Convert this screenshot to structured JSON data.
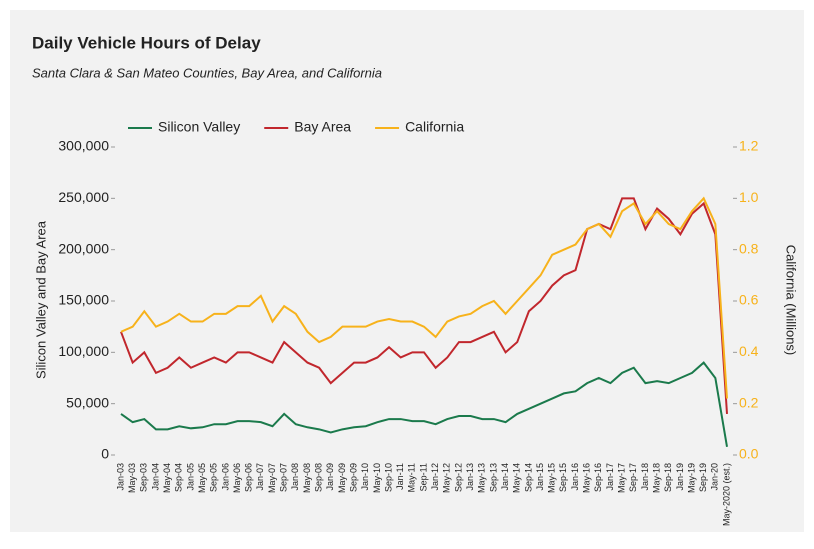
{
  "chart_data": {
    "type": "line",
    "title": "Daily Vehicle Hours of Delay",
    "subtitle": "Santa Clara & San Mateo Counties, Bay Area, and California",
    "ylabel": "Silicon Valley and Bay Area",
    "y2label": "California (Millions)",
    "categories": [
      "Jan-03",
      "May-03",
      "Sep-03",
      "Jan-04",
      "May-04",
      "Sep-04",
      "Jan-05",
      "May-05",
      "Sep-05",
      "Jan-06",
      "May-06",
      "Sep-06",
      "Jan-07",
      "May-07",
      "Sep-07",
      "Jan-08",
      "May-08",
      "Sep-08",
      "Jan-09",
      "May-09",
      "Sep-09",
      "Jan-10",
      "May-10",
      "Sep-10",
      "Jan-11",
      "May-11",
      "Sep-11",
      "Jan-12",
      "May-12",
      "Sep-12",
      "Jan-13",
      "May-13",
      "Sep-13",
      "Jan-14",
      "May-14",
      "Sep-14",
      "Jan-15",
      "May-15",
      "Sep-15",
      "Jan-16",
      "May-16",
      "Sep-16",
      "Jan-17",
      "May-17",
      "Sep-17",
      "Jan-18",
      "May-18",
      "Sep-18",
      "Jan-19",
      "May-19",
      "Sep-19",
      "Jan-20",
      "May-2020 (est.)"
    ],
    "series": [
      {
        "name": "Silicon Valley",
        "color": "#1b7a4c",
        "values": [
          40000,
          32000,
          35000,
          25000,
          25000,
          28000,
          26000,
          27000,
          30000,
          30000,
          33000,
          33000,
          32000,
          28000,
          40000,
          30000,
          27000,
          25000,
          22000,
          25000,
          27000,
          28000,
          32000,
          35000,
          35000,
          33000,
          33000,
          30000,
          35000,
          38000,
          38000,
          35000,
          35000,
          32000,
          40000,
          45000,
          50000,
          55000,
          60000,
          62000,
          70000,
          75000,
          70000,
          80000,
          85000,
          70000,
          72000,
          70000,
          75000,
          80000,
          90000,
          75000,
          8000
        ]
      },
      {
        "name": "Bay Area",
        "color": "#c1272d",
        "values": [
          120000,
          90000,
          100000,
          80000,
          85000,
          95000,
          85000,
          90000,
          95000,
          90000,
          100000,
          100000,
          95000,
          90000,
          110000,
          100000,
          90000,
          85000,
          70000,
          80000,
          90000,
          90000,
          95000,
          105000,
          95000,
          100000,
          100000,
          85000,
          95000,
          110000,
          110000,
          115000,
          120000,
          100000,
          110000,
          140000,
          150000,
          165000,
          175000,
          180000,
          220000,
          225000,
          220000,
          250000,
          250000,
          220000,
          240000,
          230000,
          215000,
          235000,
          245000,
          215000,
          40000
        ]
      },
      {
        "name": "California",
        "color": "#f7b21b",
        "axis": "y2",
        "values": [
          0.48,
          0.5,
          0.56,
          0.5,
          0.52,
          0.55,
          0.52,
          0.52,
          0.55,
          0.55,
          0.58,
          0.58,
          0.62,
          0.52,
          0.58,
          0.55,
          0.48,
          0.44,
          0.46,
          0.5,
          0.5,
          0.5,
          0.52,
          0.53,
          0.52,
          0.52,
          0.5,
          0.46,
          0.52,
          0.54,
          0.55,
          0.58,
          0.6,
          0.55,
          0.6,
          0.65,
          0.7,
          0.78,
          0.8,
          0.82,
          0.88,
          0.9,
          0.85,
          0.95,
          0.98,
          0.9,
          0.95,
          0.9,
          0.88,
          0.95,
          1.0,
          0.9,
          0.22
        ]
      }
    ],
    "ylim": [
      0,
      300000
    ],
    "yticks": [
      0,
      {
        "value": 50000,
        "label": "50,000"
      },
      {
        "value": 100000,
        "label": "100,000"
      },
      {
        "value": 150000,
        "label": "150,000"
      },
      {
        "value": 200000,
        "label": "200,000"
      },
      {
        "value": 250000,
        "label": "250,000"
      },
      {
        "value": 300000,
        "label": "300,000"
      }
    ],
    "y2lim": [
      0,
      1.2
    ],
    "y2ticks": [
      {
        "value": 0,
        "label": "0.0"
      },
      0.2,
      0.4,
      0.6,
      0.8,
      {
        "value": 1,
        "label": "1.0"
      },
      1.2
    ],
    "legend": "top"
  }
}
